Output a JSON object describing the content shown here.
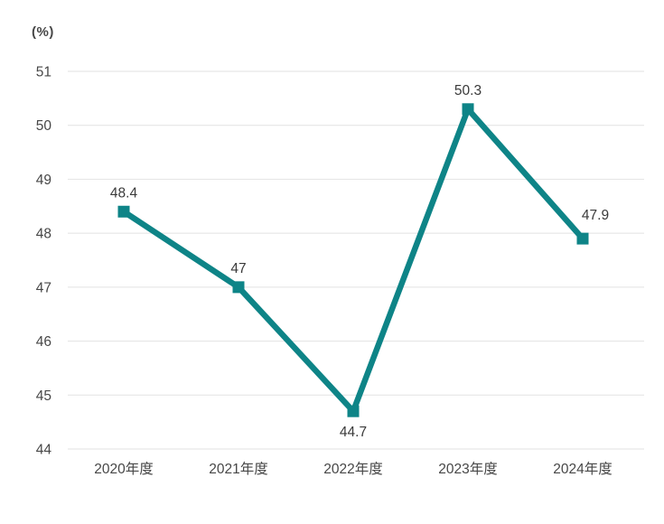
{
  "chart_data": {
    "type": "line",
    "title": "",
    "unit_label": "(%)",
    "xlabel": "",
    "ylabel": "(%)",
    "categories": [
      "2020年度",
      "2021年度",
      "2022年度",
      "2023年度",
      "2024年度"
    ],
    "series": [
      {
        "name": "rate",
        "values": [
          48.4,
          47,
          44.7,
          50.3,
          47.9
        ],
        "data_labels": [
          "48.4",
          "47",
          "44.7",
          "50.3",
          "47.9"
        ],
        "label_placements": [
          "above",
          "above",
          "below",
          "above",
          "above-right"
        ]
      }
    ],
    "ylim": [
      44,
      51
    ],
    "yticks": [
      51,
      50,
      49,
      48,
      47,
      46,
      45,
      44
    ],
    "grid": "horizontal",
    "legend": "none",
    "marker": "square",
    "colors": {
      "line": "#0E8487",
      "marker": "#0E8487",
      "grid": "#e2e2e2",
      "tick_text": "#474747",
      "data_label_text": "#3a3a3a",
      "background": "#ffffff"
    }
  }
}
